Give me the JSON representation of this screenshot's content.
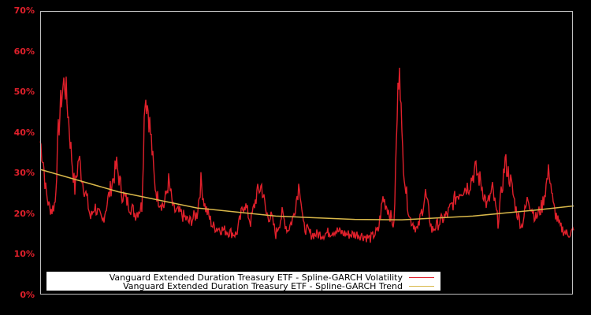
{
  "chart_data": {
    "type": "line",
    "title": "",
    "xlabel": "",
    "ylabel": "",
    "ylim": [
      0,
      70
    ],
    "y_ticks": [
      "0%",
      "10%",
      "20%",
      "30%",
      "40%",
      "50%",
      "60%",
      "70%"
    ],
    "y_tick_values": [
      0,
      10,
      20,
      30,
      40,
      50,
      60,
      70
    ],
    "grid": false,
    "legend_position": "lower left",
    "x_index": [
      0,
      4,
      7,
      11,
      15,
      19,
      23,
      27,
      31,
      35,
      39,
      44,
      49,
      54,
      59,
      64,
      69,
      79,
      89,
      97,
      104,
      114,
      121,
      129,
      133,
      137,
      141,
      145,
      149,
      157,
      163,
      169,
      179,
      189,
      199,
      204,
      209,
      219,
      234,
      249,
      259,
      267,
      275,
      281,
      287,
      294,
      299,
      307,
      314,
      321,
      329,
      334,
      344,
      359,
      374,
      389,
      404,
      419,
      429,
      435,
      442,
      449,
      453,
      456,
      459,
      464,
      469,
      479,
      489,
      497,
      507,
      517,
      527,
      534,
      544,
      552,
      559,
      567,
      574,
      581,
      590,
      597,
      604,
      611,
      619,
      629,
      637,
      646,
      651,
      659,
      669,
      677
    ],
    "series": [
      {
        "name": "Vanguard Extended Duration Treasury ETF - Spline-GARCH Volatility",
        "color": "#e0202b",
        "values": [
          38,
          33,
          26,
          22,
          21,
          23,
          40,
          49,
          53,
          46,
          36,
          26,
          34,
          28,
          24,
          19,
          22,
          18,
          26,
          32,
          25,
          22,
          20,
          22,
          50,
          46,
          38,
          28,
          24,
          22,
          28,
          21,
          20,
          18,
          20,
          28,
          22,
          17,
          16,
          15,
          23,
          18,
          25,
          27,
          20,
          19,
          15,
          20,
          16,
          19,
          28,
          17,
          15,
          15,
          16,
          15,
          15,
          14,
          16,
          24,
          21,
          17,
          44,
          60,
          38,
          26,
          19,
          16,
          25,
          16,
          18,
          20,
          24,
          26,
          27,
          31,
          28,
          22,
          26,
          18,
          33,
          28,
          21,
          17,
          24,
          19,
          22,
          31,
          22,
          17,
          15,
          16
        ]
      },
      {
        "name": "Vanguard Extended Duration Treasury ETF - Spline-GARCH Trend",
        "color": "#d9b84a",
        "values_at": {
          "x_index": [
            0,
            99,
            199,
            299,
            399,
            459,
            549,
            629,
            677
          ],
          "values": [
            31,
            25.5,
            21.5,
            19.5,
            18.7,
            18.6,
            19.5,
            21,
            22
          ]
        }
      }
    ]
  },
  "legend": {
    "items": [
      {
        "label": "Vanguard Extended Duration Treasury ETF - Spline-GARCH Volatility",
        "color": "#e0202b"
      },
      {
        "label": "Vanguard Extended Duration Treasury ETF - Spline-GARCH Trend",
        "color": "#d9b84a"
      }
    ]
  }
}
